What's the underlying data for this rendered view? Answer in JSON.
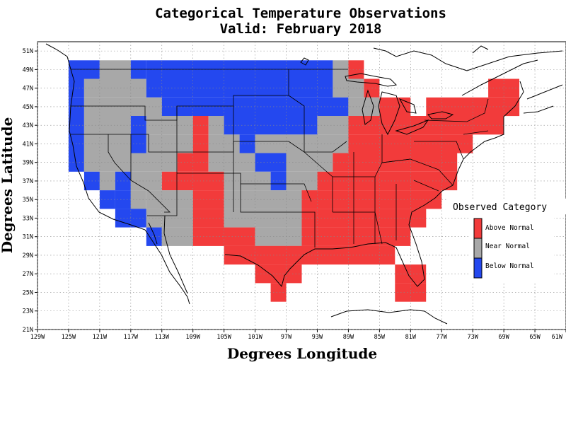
{
  "title_line1": "Categorical Temperature Observations",
  "title_line2": "Valid: February 2018",
  "xlabel": "Degrees Longitude",
  "ylabel": "Degrees Latitude",
  "legend": {
    "title": "Observed Category",
    "items": [
      {
        "key": "above",
        "label": "Above Normal",
        "color": "#f23b3b"
      },
      {
        "key": "near",
        "label": "Near Normal",
        "color": "#a8a8a8"
      },
      {
        "key": "below",
        "label": "Below Normal",
        "color": "#2448ef"
      }
    ]
  },
  "map": {
    "lon_range": [
      -129,
      -61
    ],
    "lat_range": [
      21,
      52
    ],
    "x_ticks": [
      "129W",
      "125W",
      "121W",
      "117W",
      "113W",
      "109W",
      "105W",
      "101W",
      "97W",
      "93W",
      "89W",
      "85W",
      "81W",
      "77W",
      "73W",
      "69W",
      "65W",
      "61W"
    ],
    "x_tick_values": [
      -129,
      -125,
      -121,
      -117,
      -113,
      -109,
      -105,
      -101,
      -97,
      -93,
      -89,
      -85,
      -81,
      -77,
      -73,
      -69,
      -65,
      -61
    ],
    "y_ticks": [
      "21N",
      "23N",
      "25N",
      "27N",
      "29N",
      "31N",
      "33N",
      "35N",
      "37N",
      "39N",
      "41N",
      "43N",
      "45N",
      "47N",
      "49N",
      "51N"
    ],
    "y_tick_values": [
      21,
      23,
      25,
      27,
      29,
      31,
      33,
      35,
      37,
      39,
      41,
      43,
      45,
      47,
      49,
      51
    ],
    "grid": "dotted"
  },
  "category_cells": {
    "cell_size_deg": 2,
    "rows": [
      {
        "lat": 48,
        "cells": [
          [
            -125,
            -121,
            "below"
          ],
          [
            -121,
            -117,
            "near"
          ],
          [
            -117,
            -115,
            "below"
          ],
          [
            -115,
            -91,
            "below"
          ],
          [
            -91,
            -89,
            "near"
          ],
          [
            -89,
            -87,
            "above"
          ]
        ]
      },
      {
        "lat": 46,
        "cells": [
          [
            -125,
            -123,
            "below"
          ],
          [
            -123,
            -115,
            "near"
          ],
          [
            -115,
            -91,
            "below"
          ],
          [
            -91,
            -87,
            "near"
          ],
          [
            -87,
            -85,
            "above"
          ],
          [
            -71,
            -67,
            "above"
          ]
        ]
      },
      {
        "lat": 44,
        "cells": [
          [
            -125,
            -123,
            "below"
          ],
          [
            -123,
            -113,
            "near"
          ],
          [
            -113,
            -89,
            "below"
          ],
          [
            -89,
            -85,
            "near"
          ],
          [
            -85,
            -81,
            "above"
          ],
          [
            -79,
            -67,
            "above"
          ]
        ]
      },
      {
        "lat": 42,
        "cells": [
          [
            -125,
            -123,
            "below"
          ],
          [
            -123,
            -117,
            "near"
          ],
          [
            -117,
            -115,
            "below"
          ],
          [
            -115,
            -109,
            "near"
          ],
          [
            -109,
            -107,
            "above"
          ],
          [
            -107,
            -105,
            "near"
          ],
          [
            -105,
            -93,
            "below"
          ],
          [
            -93,
            -89,
            "near"
          ],
          [
            -89,
            -69,
            "above"
          ]
        ]
      },
      {
        "lat": 40,
        "cells": [
          [
            -125,
            -123,
            "below"
          ],
          [
            -123,
            -117,
            "near"
          ],
          [
            -117,
            -115,
            "below"
          ],
          [
            -115,
            -109,
            "near"
          ],
          [
            -109,
            -107,
            "above"
          ],
          [
            -107,
            -103,
            "near"
          ],
          [
            -103,
            -101,
            "below"
          ],
          [
            -101,
            -93,
            "near"
          ],
          [
            -93,
            -89,
            "near"
          ],
          [
            -89,
            -73,
            "above"
          ]
        ]
      },
      {
        "lat": 38,
        "cells": [
          [
            -125,
            -123,
            "below"
          ],
          [
            -123,
            -111,
            "near"
          ],
          [
            -111,
            -107,
            "above"
          ],
          [
            -107,
            -101,
            "near"
          ],
          [
            -101,
            -97,
            "below"
          ],
          [
            -97,
            -91,
            "near"
          ],
          [
            -91,
            -75,
            "above"
          ]
        ]
      },
      {
        "lat": 36,
        "cells": [
          [
            -123,
            -121,
            "below"
          ],
          [
            -121,
            -119,
            "near"
          ],
          [
            -119,
            -117,
            "below"
          ],
          [
            -117,
            -113,
            "near"
          ],
          [
            -113,
            -105,
            "above"
          ],
          [
            -105,
            -99,
            "near"
          ],
          [
            -99,
            -97,
            "below"
          ],
          [
            -97,
            -93,
            "near"
          ],
          [
            -93,
            -75,
            "above"
          ]
        ]
      },
      {
        "lat": 34,
        "cells": [
          [
            -121,
            -119,
            "below"
          ],
          [
            -119,
            -117,
            "below"
          ],
          [
            -117,
            -115,
            "near"
          ],
          [
            -115,
            -109,
            "near"
          ],
          [
            -109,
            -105,
            "above"
          ],
          [
            -105,
            -95,
            "near"
          ],
          [
            -95,
            -77,
            "above"
          ]
        ]
      },
      {
        "lat": 32,
        "cells": [
          [
            -119,
            -115,
            "below"
          ],
          [
            -115,
            -113,
            "near"
          ],
          [
            -113,
            -109,
            "near"
          ],
          [
            -109,
            -105,
            "above"
          ],
          [
            -105,
            -101,
            "near"
          ],
          [
            -101,
            -95,
            "near"
          ],
          [
            -95,
            -79,
            "above"
          ]
        ]
      },
      {
        "lat": 30,
        "cells": [
          [
            -115,
            -113,
            "below"
          ],
          [
            -113,
            -109,
            "near"
          ],
          [
            -109,
            -101,
            "above"
          ],
          [
            -101,
            -95,
            "near"
          ],
          [
            -95,
            -81,
            "above"
          ]
        ]
      },
      {
        "lat": 28,
        "cells": [
          [
            -105,
            -83,
            "above"
          ]
        ]
      },
      {
        "lat": 26,
        "cells": [
          [
            -101,
            -95,
            "above"
          ],
          [
            -83,
            -79,
            "above"
          ]
        ]
      },
      {
        "lat": 24,
        "cells": [
          [
            -99,
            -97,
            "above"
          ],
          [
            -83,
            -79,
            "above"
          ]
        ]
      }
    ]
  }
}
